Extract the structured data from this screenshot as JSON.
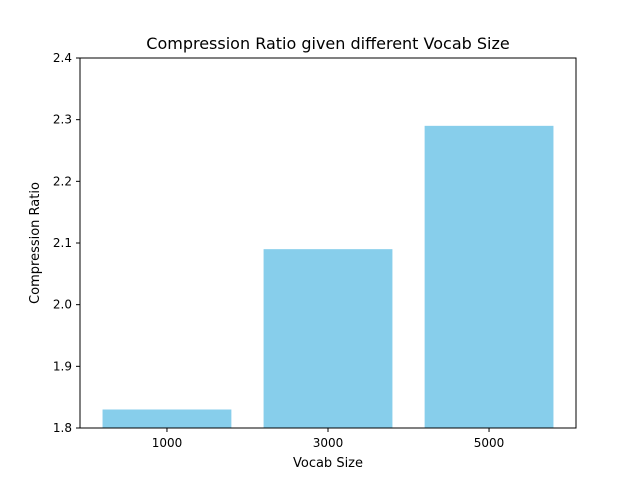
{
  "chart_data": {
    "type": "bar",
    "title": "Compression Ratio given different Vocab Size",
    "xlabel": "Vocab Size",
    "ylabel": "Compression Ratio",
    "categories": [
      "1000",
      "3000",
      "5000"
    ],
    "values": [
      1.83,
      2.09,
      2.29
    ],
    "ylim": [
      1.8,
      2.4
    ],
    "yticks": [
      "1.8",
      "1.9",
      "2.0",
      "2.1",
      "2.2",
      "2.3",
      "2.4"
    ],
    "bar_color": "#87ceeb",
    "grid": false,
    "legend": "none"
  }
}
